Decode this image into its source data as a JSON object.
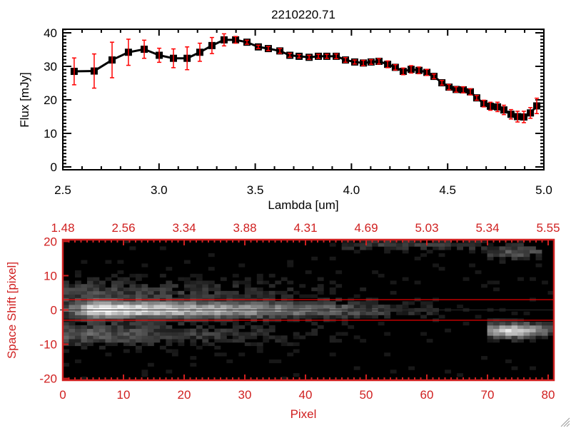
{
  "title": "2210220.71",
  "colors": {
    "axis_red": "#d02020",
    "errorbar": "#ff0000",
    "line": "#000000"
  },
  "chart_data": [
    {
      "type": "line",
      "title": "2210220.71",
      "xlabel": "Lambda [um]",
      "ylabel": "Flux [mJy]",
      "xlim": [
        2.5,
        5.0
      ],
      "ylim": [
        0,
        40
      ],
      "xticks": [
        "2.5",
        "3.0",
        "3.5",
        "4.0",
        "4.5",
        "5.0"
      ],
      "yticks": [
        "0",
        "10",
        "20",
        "30",
        "40"
      ],
      "grid": false,
      "x": [
        2.559,
        2.663,
        2.756,
        2.841,
        2.923,
        3.001,
        3.075,
        3.146,
        3.212,
        3.275,
        3.338,
        3.398,
        3.457,
        3.516,
        3.568,
        3.628,
        3.68,
        3.728,
        3.78,
        3.828,
        3.872,
        3.921,
        3.969,
        4.017,
        4.062,
        4.102,
        4.143,
        4.188,
        4.228,
        4.269,
        4.31,
        4.351,
        4.392,
        4.429,
        4.47,
        4.507,
        4.544,
        4.581,
        4.618,
        4.651,
        4.688,
        4.722,
        4.759,
        4.792,
        4.829,
        4.863,
        4.896,
        4.93,
        4.963
      ],
      "y": [
        28.5,
        28.6,
        31.9,
        34.2,
        35.1,
        33.3,
        32.4,
        32.4,
        34.2,
        36.2,
        37.9,
        37.9,
        37.2,
        35.8,
        35.3,
        34.6,
        33.3,
        33.0,
        32.7,
        33.0,
        33.0,
        33.0,
        31.9,
        31.3,
        31.0,
        31.3,
        31.5,
        30.6,
        29.7,
        28.5,
        29.1,
        28.8,
        28.2,
        27.0,
        25.1,
        23.8,
        23.1,
        23.0,
        22.4,
        20.6,
        18.9,
        18.1,
        17.9,
        17.0,
        15.7,
        15.0,
        14.9,
        16.1,
        18.2
      ],
      "yerr": [
        4.0,
        5.1,
        5.3,
        3.9,
        2.7,
        2.1,
        2.8,
        3.4,
        2.7,
        2.4,
        1.8,
        1.0,
        0.6,
        0.5,
        0.6,
        0.7,
        0.6,
        0.5,
        0.6,
        0.6,
        0.6,
        0.7,
        0.7,
        0.6,
        0.8,
        0.7,
        0.8,
        1.0,
        0.8,
        1.0,
        1.1,
        1.0,
        0.9,
        0.7,
        0.7,
        0.8,
        0.8,
        0.9,
        0.9,
        0.7,
        1.0,
        1.2,
        1.4,
        1.4,
        1.4,
        1.6,
        1.7,
        1.6,
        2.3
      ]
    },
    {
      "type": "heatmap",
      "xlabel": "Pixel",
      "ylabel": "Space Shift [pixel]",
      "xlim": [
        0,
        81
      ],
      "ylim": [
        -20,
        20
      ],
      "xticks": [
        "0",
        "10",
        "20",
        "30",
        "40",
        "50",
        "60",
        "70",
        "80"
      ],
      "yticks": [
        "-20",
        "-10",
        "0",
        "10",
        "20"
      ],
      "top_xticks": [
        "1.48",
        "2.56",
        "3.34",
        "3.88",
        "4.31",
        "4.69",
        "5.03",
        "5.34",
        "5.55"
      ],
      "aperture_lines": [
        3,
        -3
      ],
      "center_line": 0,
      "colormap": "grayscale"
    }
  ]
}
